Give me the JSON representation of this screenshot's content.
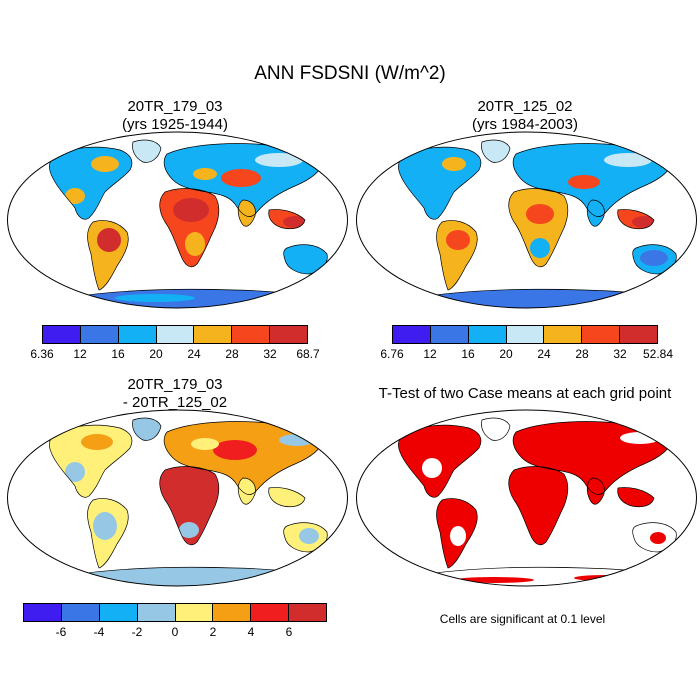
{
  "figure": {
    "title": "ANN FSDSNI (W/m^2)"
  },
  "panels": [
    {
      "id": "panel-1",
      "title_line1": "20TR_179_03",
      "title_line2": "(yrs 1925-1944)",
      "colorbar": {
        "colors": [
          "#3f1df0",
          "#3a76e5",
          "#14b0f5",
          "#c8e8f5",
          "#f5b41e",
          "#f5461e",
          "#d22d2d"
        ],
        "ticks": [
          "6.36",
          "12",
          "16",
          "20",
          "24",
          "28",
          "32",
          "68.7"
        ]
      }
    },
    {
      "id": "panel-2",
      "title_line1": "20TR_125_02",
      "title_line2": "(yrs 1984-2003)",
      "colorbar": {
        "colors": [
          "#3f1df0",
          "#3a76e5",
          "#14b0f5",
          "#c8e8f5",
          "#f5b41e",
          "#f5461e",
          "#d22d2d"
        ],
        "ticks": [
          "6.76",
          "12",
          "16",
          "20",
          "24",
          "28",
          "32",
          "52.84"
        ]
      }
    },
    {
      "id": "panel-3",
      "title_line1": "20TR_179_03",
      "title_line2": "- 20TR_125_02",
      "colorbar": {
        "colors": [
          "#3f1df0",
          "#3a76e5",
          "#14b0f5",
          "#96c8e6",
          "#fff07a",
          "#f5a014",
          "#f01e1e",
          "#d22d2d"
        ],
        "ticks": [
          "-6",
          "-4",
          "-2",
          "0",
          "2",
          "4",
          "6"
        ]
      }
    },
    {
      "id": "panel-4",
      "title_line1": "T-Test of two Case means at each grid point",
      "note": "Cells are significant at 0.1 level",
      "colors": [
        "#ee0000"
      ]
    }
  ]
}
